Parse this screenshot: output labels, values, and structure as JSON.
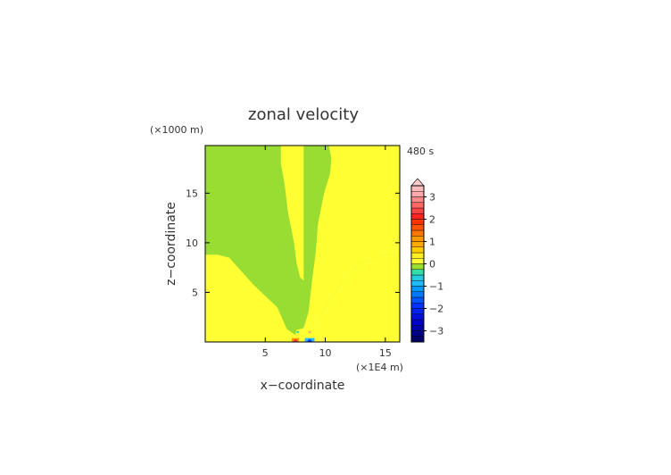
{
  "chart_data": {
    "type": "heatmap",
    "title": "zonal velocity",
    "time_label": "480 s",
    "xlabel": "x−coordinate",
    "ylabel": "z−coordinate",
    "x_unit": "(×1E4 m)",
    "y_unit": "(×1000 m)",
    "xlim": [
      0,
      16.2
    ],
    "ylim": [
      0,
      19.8
    ],
    "x_ticks": [
      5,
      10,
      15
    ],
    "y_ticks": [
      5,
      10,
      15
    ],
    "x_tick_labels": [
      "5",
      "10",
      "15"
    ],
    "y_tick_labels": [
      "5",
      "10",
      "15"
    ],
    "colorbar": {
      "min": -3.5,
      "max": 3.5,
      "step": 0.25,
      "extend": "max",
      "ticks": [
        -3,
        -2,
        -1,
        0,
        1,
        2,
        3
      ],
      "tick_labels": [
        "−3",
        "−2",
        "−1",
        "0",
        "1",
        "2",
        "3"
      ]
    },
    "regions": [
      {
        "level": "0 to 0.25",
        "color": "#ffff33",
        "description": "lower wedge and upper-right region",
        "polygon": [
          [
            0,
            0
          ],
          [
            16.2,
            0
          ],
          [
            16.2,
            8.5
          ],
          [
            15.2,
            8.9
          ],
          [
            13,
            8
          ],
          [
            11.5,
            6.2
          ],
          [
            10,
            3.5
          ],
          [
            9.1,
            1.3
          ],
          [
            8.4,
            0.7
          ],
          [
            7.5,
            0.7
          ],
          [
            6.8,
            1.3
          ],
          [
            6,
            3.5
          ],
          [
            4,
            5.8
          ],
          [
            2,
            8.5
          ],
          [
            1,
            8.8
          ],
          [
            0,
            8.8
          ]
        ]
      },
      {
        "level": "0 to 0.25",
        "color": "#ffff33",
        "description": "central plume",
        "polygon": [
          [
            6.3,
            19.8
          ],
          [
            8.2,
            19.8
          ],
          [
            8.2,
            6.2
          ],
          [
            7.9,
            6.5
          ],
          [
            7.6,
            8
          ],
          [
            7.4,
            10
          ],
          [
            6.9,
            13
          ],
          [
            6.6,
            16
          ],
          [
            6.3,
            18
          ]
        ]
      },
      {
        "level": "0 to 0.25",
        "color": "#ffff33",
        "description": "upper right",
        "polygon": [
          [
            8.5,
            19.8
          ],
          [
            16.2,
            19.8
          ],
          [
            16.2,
            8.5
          ],
          [
            15.2,
            8.9
          ],
          [
            13,
            8
          ],
          [
            11.5,
            6.2
          ],
          [
            10,
            3.5
          ],
          [
            9.1,
            1.3
          ],
          [
            8.4,
            0.7
          ],
          [
            7.5,
            0.7
          ],
          [
            7.6,
            1.2
          ],
          [
            8.2,
            1.4
          ],
          [
            8.6,
            3
          ],
          [
            8.9,
            6.2
          ],
          [
            9.2,
            9
          ],
          [
            9.4,
            12
          ],
          [
            9.9,
            15
          ],
          [
            10.4,
            17
          ],
          [
            10.5,
            18.5
          ],
          [
            10.3,
            19.8
          ]
        ]
      },
      {
        "level": "0.5 to 1.5",
        "color": "#ff9900",
        "description": "small positive anomaly near surface",
        "polygon": [
          [
            7.2,
            0
          ],
          [
            7.8,
            0
          ],
          [
            7.8,
            0.4
          ],
          [
            7.2,
            0.4
          ]
        ]
      },
      {
        "level": "1.5 to 2.5",
        "color": "#ff3333",
        "description": "positive anomaly core",
        "polygon": [
          [
            7.3,
            0
          ],
          [
            7.7,
            0
          ],
          [
            7.6,
            0.25
          ],
          [
            7.4,
            0.25
          ]
        ]
      },
      {
        "level": "-1.5 to -0.5",
        "color": "#22bbff",
        "description": "small negative anomaly near surface",
        "polygon": [
          [
            8.3,
            0
          ],
          [
            9.1,
            0
          ],
          [
            9.1,
            0.4
          ],
          [
            8.3,
            0.4
          ]
        ]
      },
      {
        "level": "-2.5 to -1.5",
        "color": "#0033ff",
        "description": "negative anomaly core",
        "polygon": [
          [
            8.5,
            0
          ],
          [
            8.9,
            0
          ],
          [
            8.8,
            0.25
          ],
          [
            8.6,
            0.25
          ]
        ]
      },
      {
        "level": "-0.5 to 0",
        "color": "#33ddaa",
        "description": "weak negative blob",
        "polygon": [
          [
            7.6,
            0.9
          ],
          [
            7.8,
            0.9
          ],
          [
            7.8,
            1.1
          ],
          [
            7.6,
            1.1
          ]
        ]
      },
      {
        "level": "0.5 to 1",
        "color": "#ffaa66",
        "description": "weak positive blob",
        "polygon": [
          [
            8.6,
            0.9
          ],
          [
            8.8,
            0.9
          ],
          [
            8.8,
            1.1
          ],
          [
            8.6,
            1.1
          ]
        ]
      }
    ],
    "background_level": "-0.25 to 0",
    "background_color": "#99dd33",
    "grid": false,
    "legend": "none"
  },
  "colors": {
    "background": "#99dd33",
    "text": "#333333",
    "axis": "#000000"
  }
}
